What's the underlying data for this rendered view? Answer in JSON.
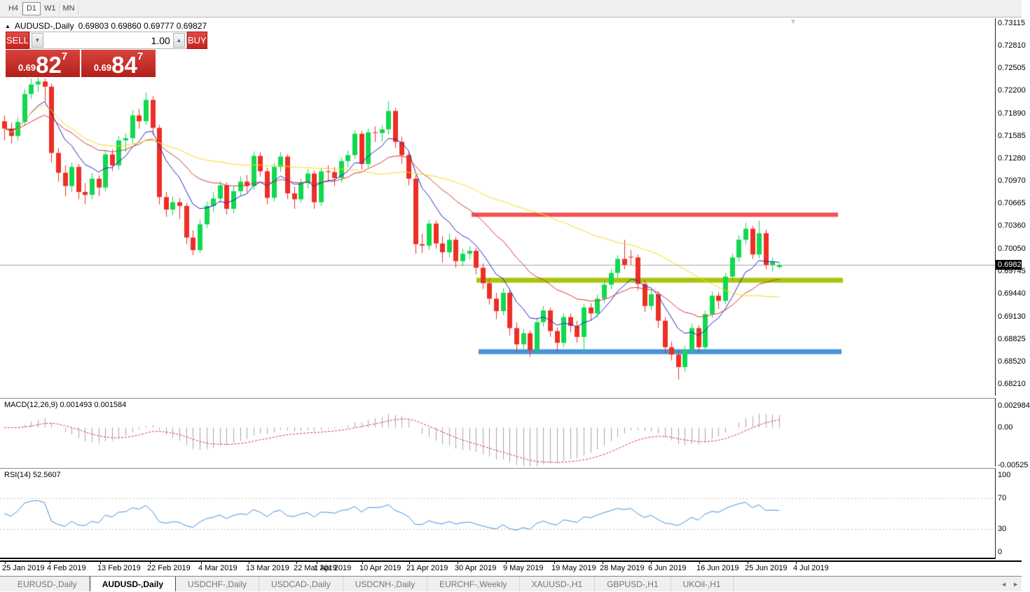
{
  "toolbar": {
    "timeframes": [
      {
        "label": "H4",
        "active": false
      },
      {
        "label": "D1",
        "active": true
      },
      {
        "label": "W1",
        "active": false
      },
      {
        "label": "MN",
        "active": false
      }
    ]
  },
  "chart_header": {
    "collapse_icon": "▲",
    "symbol": "AUDUSD-,Daily",
    "ohlc_text": "0.69803 0.69860 0.69777 0.69827",
    "shift_marker": "▼"
  },
  "trade_panel": {
    "sell_label": "SELL",
    "buy_label": "BUY",
    "volume": "1.00",
    "spin_down_icon": "▼",
    "spin_up_icon": "▲",
    "sell_price_small": "0.69",
    "sell_price_big": "82",
    "sell_price_sup": "7",
    "buy_price_small": "0.69",
    "buy_price_big": "84",
    "buy_price_sup": "7"
  },
  "indicator_macd": {
    "label": "MACD(12,26,9) 0.001493 0.001584",
    "params": [
      12,
      26,
      9
    ],
    "values_text": [
      "0.001493",
      "0.001584"
    ],
    "axis_labels": [
      "0.002984",
      "0.00",
      "-0.00525"
    ],
    "axis_values": [
      0.002984,
      0.0,
      -0.00525
    ],
    "range": [
      -0.0054,
      0.004
    ]
  },
  "indicator_rsi": {
    "label": "RSI(14) 52.5607",
    "period": 14,
    "value_text": "52.5607",
    "axis_labels": [
      "100",
      "70",
      "30",
      "0"
    ],
    "axis_values": [
      100,
      70,
      30,
      0
    ],
    "levels": [
      70,
      30
    ],
    "range": [
      -8,
      108
    ]
  },
  "tabs": {
    "items": [
      {
        "label": "EURUSD-,Daily",
        "active": false
      },
      {
        "label": "AUDUSD-,Daily",
        "active": true
      },
      {
        "label": "USDCHF-,Daily",
        "active": false
      },
      {
        "label": "USDCAD-,Daily",
        "active": false
      },
      {
        "label": "USDCNH-,Daily",
        "active": false
      },
      {
        "label": "EURCHF-,Weekly",
        "active": false
      },
      {
        "label": "XAUUSD-,H1",
        "active": false
      },
      {
        "label": "GBPUSD-,H1",
        "active": false
      },
      {
        "label": "UKOil-,H1",
        "active": false
      }
    ],
    "scroll_left_icon": "◄",
    "scroll_right_icon": "►"
  },
  "chart_data": {
    "type": "candlestick",
    "symbol": "AUDUSD",
    "timeframe": "Daily",
    "bid_text": "0.69827",
    "bid": 0.69827,
    "price_range": [
      0.6805,
      0.7318
    ],
    "y_ticks": [
      "0.73115",
      "0.72810",
      "0.72505",
      "0.72200",
      "0.71890",
      "0.71585",
      "0.71280",
      "0.70970",
      "0.70665",
      "0.70360",
      "0.70050",
      "0.69745",
      "0.69440",
      "0.69130",
      "0.68825",
      "0.68520",
      "0.68210"
    ],
    "x_labels": [
      {
        "text": "25 Jan 2019",
        "x": 3
      },
      {
        "text": "4 Feb 2019",
        "x": 67
      },
      {
        "text": "13 Feb 2019",
        "x": 139
      },
      {
        "text": "22 Feb 2019",
        "x": 210
      },
      {
        "text": "4 Mar 2019",
        "x": 283
      },
      {
        "text": "13 Mar 2019",
        "x": 351
      },
      {
        "text": "22 Mar 2019",
        "x": 419
      },
      {
        "text": "1 Apr 2019",
        "x": 448
      },
      {
        "text": "10 Apr 2019",
        "x": 513
      },
      {
        "text": "21 Apr 2019",
        "x": 580
      },
      {
        "text": "30 Apr 2019",
        "x": 649
      },
      {
        "text": "9 May 2019",
        "x": 718
      },
      {
        "text": "19 May 2019",
        "x": 787
      },
      {
        "text": "28 May 2019",
        "x": 856
      },
      {
        "text": "6 Jun 2019",
        "x": 925
      },
      {
        "text": "16 Jun 2019",
        "x": 994
      },
      {
        "text": "25 Jun 2019",
        "x": 1063
      },
      {
        "text": "4 Jul 2019",
        "x": 1132
      }
    ],
    "candles": [
      [
        0.7178,
        0.7186,
        0.7152,
        0.7168
      ],
      [
        0.7168,
        0.7176,
        0.7148,
        0.7158
      ],
      [
        0.7158,
        0.7183,
        0.7152,
        0.7177
      ],
      [
        0.7177,
        0.7222,
        0.7172,
        0.7215
      ],
      [
        0.7215,
        0.7236,
        0.7208,
        0.7228
      ],
      [
        0.7228,
        0.7238,
        0.7218,
        0.7232
      ],
      [
        0.7232,
        0.7236,
        0.7205,
        0.7225
      ],
      [
        0.7225,
        0.7229,
        0.7122,
        0.7135
      ],
      [
        0.7135,
        0.7142,
        0.7096,
        0.7108
      ],
      [
        0.7108,
        0.7118,
        0.7076,
        0.709
      ],
      [
        0.709,
        0.7122,
        0.7082,
        0.7116
      ],
      [
        0.7116,
        0.712,
        0.7072,
        0.7082
      ],
      [
        0.7082,
        0.7094,
        0.7065,
        0.7078
      ],
      [
        0.7078,
        0.7108,
        0.7072,
        0.71
      ],
      [
        0.71,
        0.7105,
        0.7076,
        0.7088
      ],
      [
        0.7088,
        0.7139,
        0.7083,
        0.7133
      ],
      [
        0.7133,
        0.714,
        0.711,
        0.7118
      ],
      [
        0.7118,
        0.7158,
        0.7112,
        0.7152
      ],
      [
        0.7152,
        0.7162,
        0.7136,
        0.7155
      ],
      [
        0.7155,
        0.7193,
        0.7148,
        0.7186
      ],
      [
        0.7186,
        0.7195,
        0.7168,
        0.7178
      ],
      [
        0.7178,
        0.7217,
        0.7173,
        0.7207
      ],
      [
        0.7207,
        0.7212,
        0.716,
        0.7169
      ],
      [
        0.7169,
        0.7173,
        0.7065,
        0.7075
      ],
      [
        0.7075,
        0.7082,
        0.7048,
        0.7058
      ],
      [
        0.7058,
        0.7076,
        0.705,
        0.7068
      ],
      [
        0.7068,
        0.7074,
        0.7045,
        0.7063
      ],
      [
        0.7063,
        0.7067,
        0.7011,
        0.702
      ],
      [
        0.702,
        0.703,
        0.6996,
        0.7003
      ],
      [
        0.7003,
        0.7045,
        0.6999,
        0.7038
      ],
      [
        0.7038,
        0.7069,
        0.7033,
        0.7063
      ],
      [
        0.7063,
        0.7082,
        0.7055,
        0.7073
      ],
      [
        0.7073,
        0.7097,
        0.7067,
        0.7091
      ],
      [
        0.7091,
        0.7095,
        0.7051,
        0.7059
      ],
      [
        0.7059,
        0.7089,
        0.7053,
        0.7083
      ],
      [
        0.7083,
        0.7103,
        0.7077,
        0.7096
      ],
      [
        0.7096,
        0.7105,
        0.7081,
        0.709
      ],
      [
        0.709,
        0.7137,
        0.7085,
        0.7131
      ],
      [
        0.7131,
        0.7136,
        0.7103,
        0.711
      ],
      [
        0.711,
        0.7115,
        0.7065,
        0.7074
      ],
      [
        0.7074,
        0.7121,
        0.7069,
        0.7116
      ],
      [
        0.7116,
        0.7136,
        0.7109,
        0.713
      ],
      [
        0.713,
        0.7133,
        0.7072,
        0.708
      ],
      [
        0.708,
        0.7089,
        0.7059,
        0.7072
      ],
      [
        0.7072,
        0.71,
        0.7067,
        0.7094
      ],
      [
        0.7094,
        0.7113,
        0.7087,
        0.7107
      ],
      [
        0.7107,
        0.7111,
        0.7059,
        0.7068
      ],
      [
        0.7068,
        0.7115,
        0.7063,
        0.711
      ],
      [
        0.711,
        0.7118,
        0.7097,
        0.7109
      ],
      [
        0.7109,
        0.7116,
        0.709,
        0.7101
      ],
      [
        0.7101,
        0.7129,
        0.7095,
        0.7124
      ],
      [
        0.7124,
        0.7138,
        0.7115,
        0.7132
      ],
      [
        0.7132,
        0.7166,
        0.7127,
        0.7161
      ],
      [
        0.7161,
        0.7165,
        0.7112,
        0.712
      ],
      [
        0.712,
        0.7168,
        0.7115,
        0.7163
      ],
      [
        0.7163,
        0.7171,
        0.715,
        0.7162
      ],
      [
        0.7162,
        0.7173,
        0.715,
        0.7167
      ],
      [
        0.7167,
        0.7205,
        0.716,
        0.7192
      ],
      [
        0.7192,
        0.7196,
        0.7142,
        0.715
      ],
      [
        0.715,
        0.7157,
        0.712,
        0.7132
      ],
      [
        0.7132,
        0.7136,
        0.7091,
        0.71
      ],
      [
        0.71,
        0.7105,
        0.6998,
        0.7011
      ],
      [
        0.7011,
        0.7025,
        0.6999,
        0.7009
      ],
      [
        0.7009,
        0.7044,
        0.7003,
        0.7039
      ],
      [
        0.7039,
        0.7043,
        0.7005,
        0.7012
      ],
      [
        0.7012,
        0.7022,
        0.6986,
        0.7
      ],
      [
        0.7,
        0.7025,
        0.6993,
        0.7017
      ],
      [
        0.7017,
        0.7021,
        0.6979,
        0.6988
      ],
      [
        0.6988,
        0.7005,
        0.6981,
        0.6998
      ],
      [
        0.6998,
        0.7008,
        0.699,
        0.7002
      ],
      [
        0.7002,
        0.7006,
        0.697,
        0.6979
      ],
      [
        0.6979,
        0.6985,
        0.695,
        0.6958
      ],
      [
        0.6958,
        0.6965,
        0.6929,
        0.6937
      ],
      [
        0.6937,
        0.6945,
        0.6909,
        0.692
      ],
      [
        0.692,
        0.6951,
        0.6914,
        0.6945
      ],
      [
        0.6945,
        0.6949,
        0.6887,
        0.6897
      ],
      [
        0.6897,
        0.6905,
        0.6865,
        0.6875
      ],
      [
        0.6875,
        0.6896,
        0.6869,
        0.689
      ],
      [
        0.689,
        0.6894,
        0.6858,
        0.6867
      ],
      [
        0.6867,
        0.6911,
        0.6861,
        0.6905
      ],
      [
        0.6905,
        0.6927,
        0.6899,
        0.6921
      ],
      [
        0.6921,
        0.6925,
        0.6885,
        0.6893
      ],
      [
        0.6893,
        0.6898,
        0.6864,
        0.6877
      ],
      [
        0.6877,
        0.6917,
        0.6871,
        0.6912
      ],
      [
        0.6912,
        0.6917,
        0.6891,
        0.69
      ],
      [
        0.69,
        0.6907,
        0.6877,
        0.6885
      ],
      [
        0.6885,
        0.693,
        0.6864,
        0.6925
      ],
      [
        0.6925,
        0.6931,
        0.6907,
        0.6917
      ],
      [
        0.6917,
        0.6943,
        0.6911,
        0.6937
      ],
      [
        0.6937,
        0.6962,
        0.6931,
        0.6956
      ],
      [
        0.6956,
        0.6977,
        0.695,
        0.6972
      ],
      [
        0.6972,
        0.6996,
        0.6966,
        0.6991
      ],
      [
        0.6991,
        0.7017,
        0.6977,
        0.6983
      ],
      [
        0.6994,
        0.7003,
        0.6983,
        0.6993
      ],
      [
        0.6993,
        0.6997,
        0.6948,
        0.6957
      ],
      [
        0.6957,
        0.6963,
        0.6919,
        0.6927
      ],
      [
        0.6927,
        0.6949,
        0.6921,
        0.6943
      ],
      [
        0.6943,
        0.6947,
        0.6897,
        0.6907
      ],
      [
        0.6907,
        0.6912,
        0.6863,
        0.6871
      ],
      [
        0.6871,
        0.6879,
        0.6853,
        0.6861
      ],
      [
        0.6861,
        0.6866,
        0.6827,
        0.6844
      ],
      [
        0.6844,
        0.6873,
        0.6838,
        0.6867
      ],
      [
        0.6867,
        0.6903,
        0.6861,
        0.6897
      ],
      [
        0.6897,
        0.6901,
        0.6865,
        0.6871
      ],
      [
        0.6871,
        0.6921,
        0.6866,
        0.6916
      ],
      [
        0.6916,
        0.6947,
        0.6911,
        0.6941
      ],
      [
        0.6941,
        0.6946,
        0.6923,
        0.6934
      ],
      [
        0.6934,
        0.6972,
        0.6929,
        0.6967
      ],
      [
        0.6967,
        0.6998,
        0.6962,
        0.6993
      ],
      [
        0.6993,
        0.7023,
        0.6987,
        0.7017
      ],
      [
        0.7017,
        0.704,
        0.7011,
        0.7032
      ],
      [
        0.7032,
        0.7036,
        0.6991,
        0.6997
      ],
      [
        0.6997,
        0.7043,
        0.6992,
        0.7026
      ],
      [
        0.7026,
        0.7031,
        0.6977,
        0.6983
      ],
      [
        0.6983,
        0.6993,
        0.6974,
        0.6987
      ],
      [
        0.698,
        0.6986,
        0.69777,
        0.69827
      ]
    ],
    "moving_averages": [
      {
        "name": "fast-ma",
        "type": "ema",
        "period": 8,
        "color": "#2323c0"
      },
      {
        "name": "mid-ma",
        "type": "ema",
        "period": 21,
        "color": "#d43434"
      },
      {
        "name": "slow-ma",
        "type": "sma",
        "period": 50,
        "color": "#f5dd0e"
      }
    ],
    "hlines": [
      {
        "name": "resistance",
        "value": 0.7051,
        "color": "#f25050",
        "width": 6,
        "x_from": 673,
        "x_to": 1196
      },
      {
        "name": "pivot",
        "value": 0.6962,
        "color": "#a9c40d",
        "width": 7,
        "x_from": 680,
        "x_to": 1203
      },
      {
        "name": "support",
        "value": 0.6865,
        "color": "#4793d9",
        "width": 7,
        "x_from": 683,
        "x_to": 1201
      }
    ],
    "style": {
      "bull": "#12d850",
      "bear": "#ee2e24",
      "bid_line": "#a6a6a6",
      "macd_hist": "#a4a4a4",
      "macd_signal": "#e03434",
      "rsi_line": "#3f8ede",
      "level_dash": "#c0c0c0"
    }
  }
}
